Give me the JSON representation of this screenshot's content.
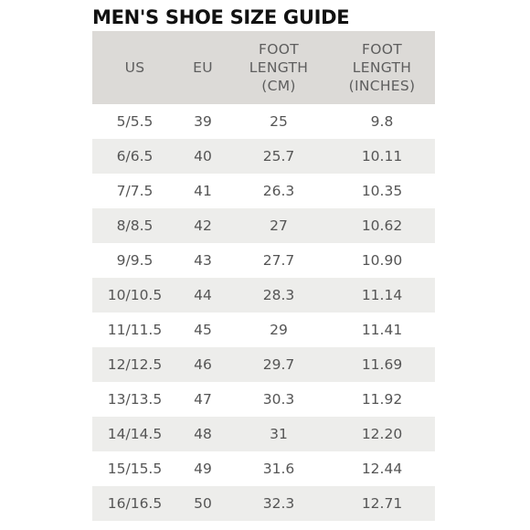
{
  "title": "MEN'S SHOE SIZE GUIDE",
  "headers": {
    "us": [
      "US"
    ],
    "eu": [
      "EU"
    ],
    "cm": [
      "FOOT",
      "LENGTH",
      "(CM)"
    ],
    "in": [
      "FOOT",
      "LENGTH",
      "(INCHES)"
    ]
  },
  "rows": [
    {
      "us": "5/5.5",
      "eu": "39",
      "cm": "25",
      "in": "9.8"
    },
    {
      "us": "6/6.5",
      "eu": "40",
      "cm": "25.7",
      "in": "10.11"
    },
    {
      "us": "7/7.5",
      "eu": "41",
      "cm": "26.3",
      "in": "10.35"
    },
    {
      "us": "8/8.5",
      "eu": "42",
      "cm": "27",
      "in": "10.62"
    },
    {
      "us": "9/9.5",
      "eu": "43",
      "cm": "27.7",
      "in": "10.90"
    },
    {
      "us": "10/10.5",
      "eu": "44",
      "cm": "28.3",
      "in": "11.14"
    },
    {
      "us": "11/11.5",
      "eu": "45",
      "cm": "29",
      "in": "11.41"
    },
    {
      "us": "12/12.5",
      "eu": "46",
      "cm": "29.7",
      "in": "11.69"
    },
    {
      "us": "13/13.5",
      "eu": "47",
      "cm": "30.3",
      "in": "11.92"
    },
    {
      "us": "14/14.5",
      "eu": "48",
      "cm": "31",
      "in": "12.20"
    },
    {
      "us": "15/15.5",
      "eu": "49",
      "cm": "31.6",
      "in": "12.44"
    },
    {
      "us": "16/16.5",
      "eu": "50",
      "cm": "32.3",
      "in": "12.71"
    }
  ]
}
